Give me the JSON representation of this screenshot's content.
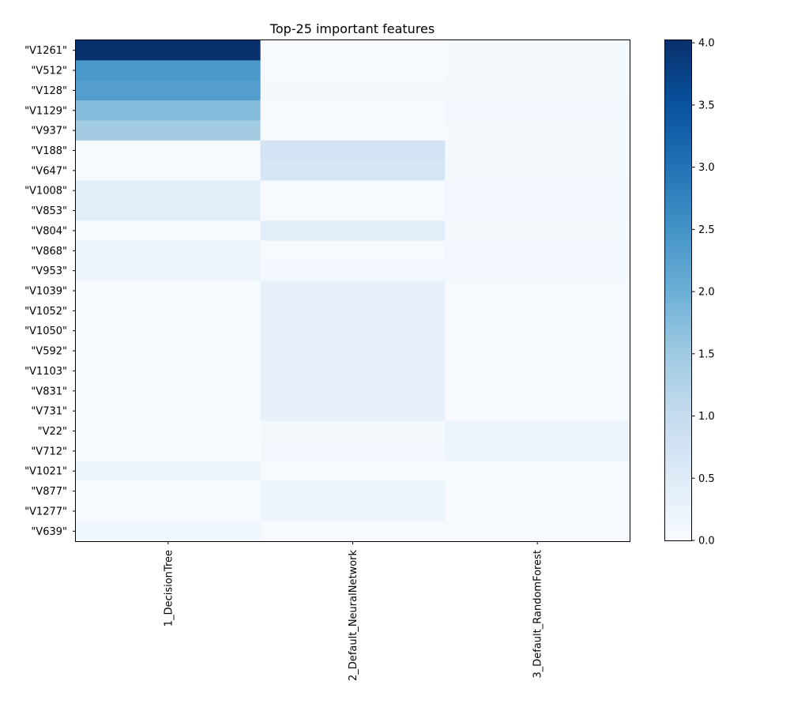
{
  "chart_data": {
    "type": "heatmap",
    "title": "Top-25 important features",
    "columns": [
      "1_DecisionTree",
      "2_Default_NeuralNetwork",
      "3_Default_RandomForest"
    ],
    "rows": [
      "\"V1261\"",
      "\"V512\"",
      "\"V128\"",
      "\"V1129\"",
      "\"V937\"",
      "\"V188\"",
      "\"V647\"",
      "\"V1008\"",
      "\"V853\"",
      "\"V804\"",
      "\"V868\"",
      "\"V953\"",
      "\"V1039\"",
      "\"V1052\"",
      "\"V1050\"",
      "\"V592\"",
      "\"V1103\"",
      "\"V831\"",
      "\"V731\"",
      "\"V22\"",
      "\"V712\"",
      "\"V1021\"",
      "\"V877\"",
      "\"V1277\"",
      "\"V639\""
    ],
    "values": [
      [
        4.02,
        0.03,
        0.06
      ],
      [
        2.4,
        0.03,
        0.06
      ],
      [
        2.3,
        0.06,
        0.06
      ],
      [
        1.75,
        0.03,
        0.12
      ],
      [
        1.45,
        0.03,
        0.06
      ],
      [
        0.03,
        0.75,
        0.06
      ],
      [
        0.03,
        0.65,
        0.06
      ],
      [
        0.45,
        0.03,
        0.1
      ],
      [
        0.45,
        0.03,
        0.1
      ],
      [
        0.03,
        0.45,
        0.06
      ],
      [
        0.25,
        0.03,
        0.1
      ],
      [
        0.25,
        0.1,
        0.1
      ],
      [
        0.03,
        0.3,
        0.03
      ],
      [
        0.03,
        0.3,
        0.03
      ],
      [
        0.03,
        0.3,
        0.03
      ],
      [
        0.03,
        0.3,
        0.03
      ],
      [
        0.03,
        0.3,
        0.03
      ],
      [
        0.03,
        0.3,
        0.03
      ],
      [
        0.03,
        0.3,
        0.03
      ],
      [
        0.03,
        0.06,
        0.25
      ],
      [
        0.03,
        0.1,
        0.25
      ],
      [
        0.2,
        0.03,
        0.03
      ],
      [
        0.03,
        0.2,
        0.03
      ],
      [
        0.03,
        0.2,
        0.03
      ],
      [
        0.15,
        0.03,
        0.03
      ]
    ],
    "colorbar": {
      "min": 0.0,
      "max": 4.02,
      "ticks": [
        0.0,
        0.5,
        1.0,
        1.5,
        2.0,
        2.5,
        3.0,
        3.5,
        4.0
      ],
      "tick_labels": [
        "0.0",
        "0.5",
        "1.0",
        "1.5",
        "2.0",
        "2.5",
        "3.0",
        "3.5",
        "4.0"
      ],
      "colormap": "Blues"
    },
    "xlabel": "",
    "ylabel": ""
  }
}
